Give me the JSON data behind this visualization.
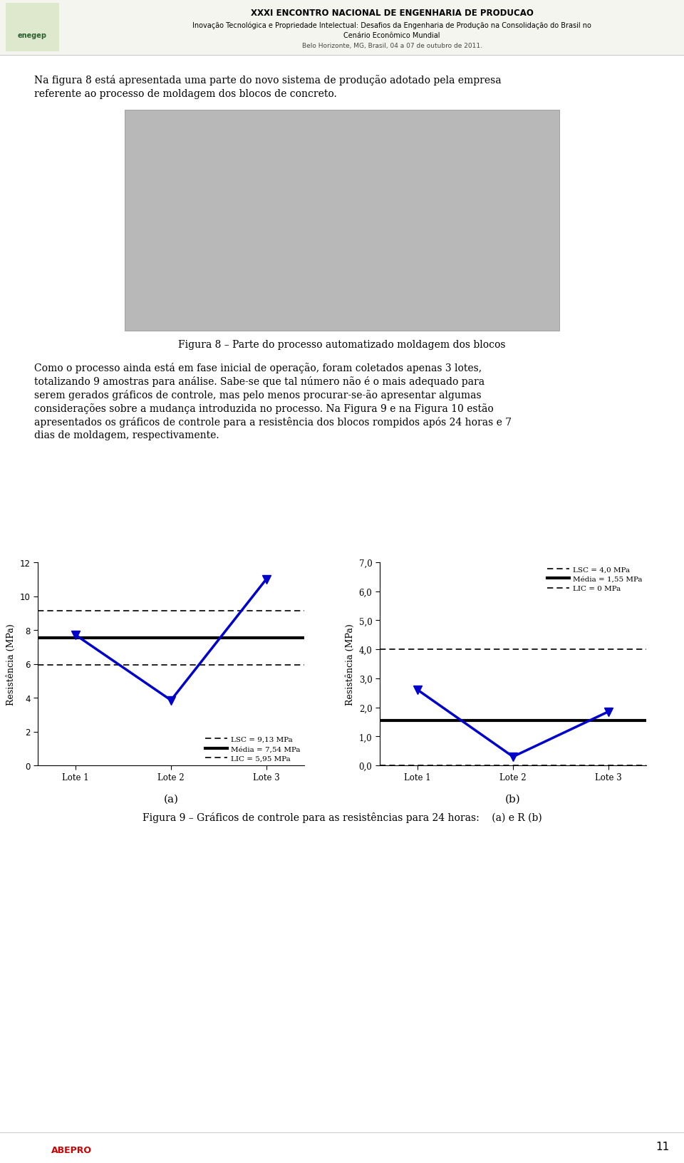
{
  "header_title": "XXXI ENCONTRO NACIONAL DE ENGENHARIA DE PRODUCAO",
  "header_subtitle1": "Inovação Tecnológica e Propriedade Intelectual: Desafios da Engenharia de Produção na Consolidação do Brasil no",
  "header_subtitle2": "Cenário Econômico Mundial",
  "header_location": "Belo Horizonte, MG, Brasil, 04 a 07 de outubro de 2011.",
  "page_number": "11",
  "paragraph1_line1": "Na figura 8 está apresentada uma parte do novo sistema de produção adotado pela empresa",
  "paragraph1_line2": "referente ao processo de moldagem dos blocos de concreto.",
  "fig8_caption": "Figura 8 – Parte do processo automatizado moldagem dos blocos",
  "paragraph2_lines": [
    "Como o processo ainda está em fase inicial de operação, foram coletados apenas 3 lotes,",
    "totalizando 9 amostras para análise. Sabe-se que tal número não é o mais adequado para",
    "serem gerados gráficos de controle, mas pelo menos procurar-se-ão apresentar algumas",
    "considerações sobre a mudança introduzida no processo. Na Figura 9 e na Figura 10 estão",
    "apresentados os gráficos de controle para a resistência dos blocos rompidos após 24 horas e 7",
    "dias de moldagem, respectivamente."
  ],
  "chart_a": {
    "x_labels": [
      "Lote 1",
      "Lote 2",
      "Lote 3"
    ],
    "y_data": [
      7.7,
      3.85,
      11.0
    ],
    "ylim": [
      0,
      12
    ],
    "yticks": [
      0,
      2,
      4,
      6,
      8,
      10,
      12
    ],
    "lsc": 9.13,
    "media": 7.54,
    "lic": 5.95,
    "lsc_label": "LSC = 9,13 MPa",
    "media_label": "Média = 7,54 MPa",
    "lic_label": "LIC = 5,95 MPa",
    "ylabel": "Resistência (MPa)",
    "sublabel": "(a)"
  },
  "chart_b": {
    "x_labels": [
      "Lote 1",
      "Lote 2",
      "Lote 3"
    ],
    "y_data": [
      2.6,
      0.3,
      1.85
    ],
    "ylim": [
      0.0,
      7.0
    ],
    "ytick_vals": [
      0.0,
      1.0,
      2.0,
      3.0,
      4.0,
      5.0,
      6.0,
      7.0
    ],
    "ytick_labels": [
      "0,0",
      "1,0",
      "2,0",
      "3,0",
      "4,0",
      "5,0",
      "6,0",
      "7,0"
    ],
    "lsc": 4.0,
    "media": 1.55,
    "lic": 0.0,
    "lsc_label": "LSC = 4,0 MPa",
    "media_label": "Média = 1,55 MPa",
    "lic_label": "LIC = 0 MPa",
    "ylabel": "Resistência (MPa)",
    "sublabel": "(b)"
  },
  "fig9_caption": "Figura 9 – Gráficos de controle para as resistências para 24 horas:    (a) e R (b)",
  "data_color": "#0000CC",
  "bg_color": "#ffffff",
  "text_color": "#000000",
  "header_bg": "#f5f5f0",
  "marker_size": 8
}
